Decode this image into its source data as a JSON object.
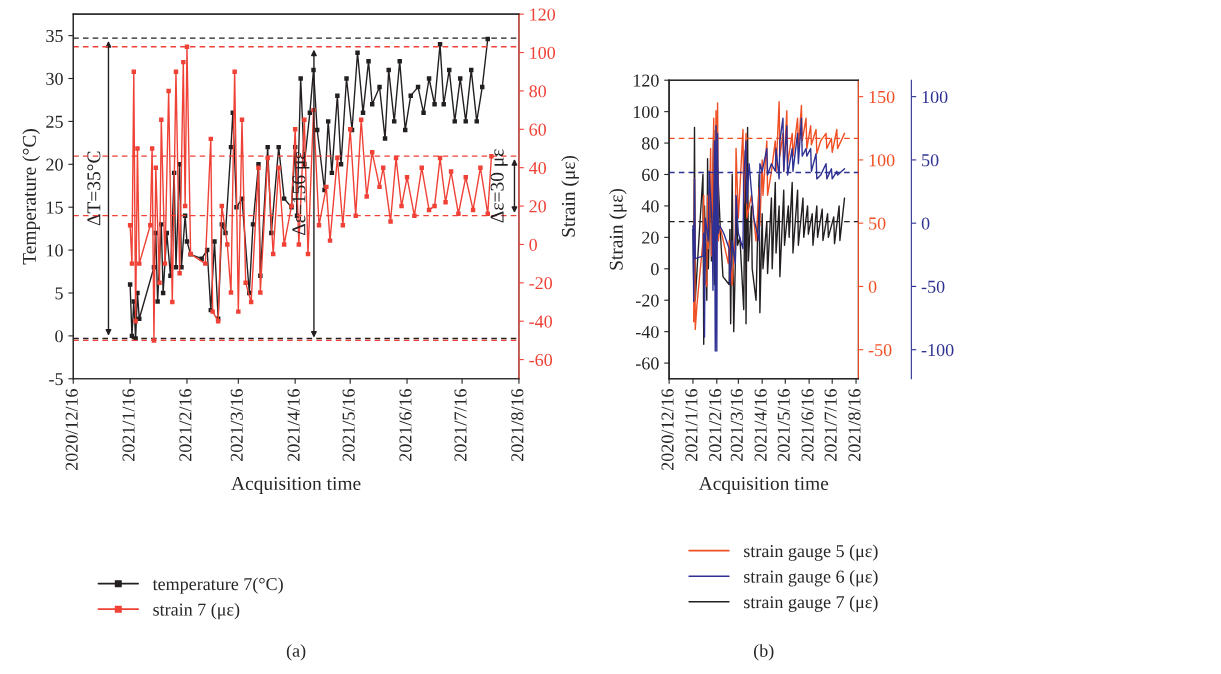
{
  "chart_data": [
    {
      "type": "line",
      "xlabel": "Acquisition time",
      "ylabel": "Temperature (°C)",
      "y2label": "Strain (με)",
      "marker": "square",
      "legend": "bottom",
      "grid": false,
      "xlim": [
        "2020-12-16",
        "2021-08-16"
      ],
      "xticks": [
        {
          "value": "2020-12-16",
          "label": "2020/12/16"
        },
        {
          "value": "2021-01-16",
          "label": "2021/1/16"
        },
        {
          "value": "2021-02-16",
          "label": "2021/2/16"
        },
        {
          "value": "2021-03-16",
          "label": "2021/3/16"
        },
        {
          "value": "2021-04-16",
          "label": "2021/4/16"
        },
        {
          "value": "2021-05-16",
          "label": "2021/5/16"
        },
        {
          "value": "2021-06-16",
          "label": "2021/6/16"
        },
        {
          "value": "2021-07-16",
          "label": "2021/7/16"
        },
        {
          "value": "2021-08-16",
          "label": "2021/8/16"
        }
      ],
      "ylim": [
        -5,
        37.5
      ],
      "yticks": [
        -5,
        0,
        5,
        10,
        15,
        20,
        25,
        30,
        35
      ],
      "y2lim": [
        -70,
        120
      ],
      "y2ticks": [
        -60,
        -40,
        -20,
        0,
        20,
        40,
        60,
        80,
        100,
        120
      ],
      "series": [
        {
          "name": "temperature 7(°C)",
          "color": "#231f20",
          "x": [
            "2021-01-16",
            "2021-01-17",
            "2021-01-18",
            "2021-01-19",
            "2021-01-20",
            "2021-01-21",
            "2021-01-29",
            "2021-01-30",
            "2021-01-31",
            "2021-02-02",
            "2021-02-03",
            "2021-02-05",
            "2021-02-07",
            "2021-02-09",
            "2021-02-10",
            "2021-02-12",
            "2021-02-13",
            "2021-02-15",
            "2021-02-16",
            "2021-02-18",
            "2021-02-24",
            "2021-02-27",
            "2021-03-01",
            "2021-03-03",
            "2021-03-05",
            "2021-03-07",
            "2021-03-09",
            "2021-03-12",
            "2021-03-13",
            "2021-03-15",
            "2021-03-18",
            "2021-03-22",
            "2021-03-24",
            "2021-03-27",
            "2021-03-28",
            "2021-04-01",
            "2021-04-03",
            "2021-04-07",
            "2021-04-10",
            "2021-04-14",
            "2021-04-16",
            "2021-04-17",
            "2021-04-19",
            "2021-04-21",
            "2021-04-24",
            "2021-04-26",
            "2021-04-28",
            "2021-05-02",
            "2021-05-04",
            "2021-05-06",
            "2021-05-09",
            "2021-05-11",
            "2021-05-14",
            "2021-05-17",
            "2021-05-20",
            "2021-05-23",
            "2021-05-26",
            "2021-05-28",
            "2021-06-01",
            "2021-06-04",
            "2021-06-06",
            "2021-06-09",
            "2021-06-12",
            "2021-06-15",
            "2021-06-18",
            "2021-06-22",
            "2021-06-25",
            "2021-06-28",
            "2021-07-01",
            "2021-07-04",
            "2021-07-06",
            "2021-07-09",
            "2021-07-12",
            "2021-07-15",
            "2021-07-18",
            "2021-07-21",
            "2021-07-24",
            "2021-07-27",
            "2021-07-30"
          ],
          "values": [
            6,
            0,
            4,
            -0.3,
            5,
            2,
            8,
            12,
            4,
            13,
            5,
            12,
            7,
            19,
            8,
            20,
            8,
            14,
            11,
            9.5,
            9,
            10,
            3,
            11,
            2,
            13,
            12,
            22,
            26,
            15,
            16,
            5,
            13,
            20,
            7,
            22,
            12,
            22,
            16,
            15,
            22,
            14,
            30,
            20,
            26,
            31,
            24,
            17,
            25,
            19,
            28,
            20,
            30,
            24,
            33,
            26,
            32,
            27,
            29,
            23,
            31,
            25,
            32,
            24,
            28,
            29,
            26,
            30,
            27,
            34,
            27,
            31,
            25,
            30,
            25,
            31,
            25,
            29,
            34.6
          ]
        },
        {
          "name": "strain 7 (με)",
          "color": "#ef4136",
          "axis": "y2",
          "x": [
            "2021-01-16",
            "2021-01-17",
            "2021-01-18",
            "2021-01-19",
            "2021-01-20",
            "2021-01-21",
            "2021-01-27",
            "2021-01-28",
            "2021-01-29",
            "2021-01-30",
            "2021-02-01",
            "2021-02-02",
            "2021-02-04",
            "2021-02-06",
            "2021-02-08",
            "2021-02-10",
            "2021-02-12",
            "2021-02-14",
            "2021-02-15",
            "2021-02-16",
            "2021-02-18",
            "2021-02-26",
            "2021-03-01",
            "2021-03-02",
            "2021-03-05",
            "2021-03-07",
            "2021-03-10",
            "2021-03-12",
            "2021-03-14",
            "2021-03-16",
            "2021-03-18",
            "2021-03-20",
            "2021-03-23",
            "2021-03-27",
            "2021-03-28",
            "2021-04-01",
            "2021-04-04",
            "2021-04-07",
            "2021-04-10",
            "2021-04-14",
            "2021-04-16",
            "2021-04-18",
            "2021-04-21",
            "2021-04-23",
            "2021-04-26",
            "2021-04-29",
            "2021-05-03",
            "2021-05-05",
            "2021-05-09",
            "2021-05-12",
            "2021-05-16",
            "2021-05-19",
            "2021-05-22",
            "2021-05-25",
            "2021-05-28",
            "2021-06-01",
            "2021-06-03",
            "2021-06-07",
            "2021-06-10",
            "2021-06-13",
            "2021-06-16",
            "2021-06-20",
            "2021-06-24",
            "2021-06-28",
            "2021-07-01",
            "2021-07-04",
            "2021-07-07",
            "2021-07-10",
            "2021-07-14",
            "2021-07-18",
            "2021-07-22",
            "2021-07-26",
            "2021-07-30",
            "2021-08-01"
          ],
          "values": [
            10,
            -10,
            90,
            -40,
            50,
            -10,
            10,
            50,
            -50,
            40,
            -20,
            65,
            -10,
            80,
            -30,
            90,
            -15,
            95,
            20,
            103,
            -5,
            -10,
            55,
            -35,
            -40,
            20,
            0,
            -25,
            90,
            -35,
            65,
            -20,
            -30,
            40,
            -25,
            45,
            -5,
            40,
            0,
            20,
            60,
            0,
            65,
            -5,
            70,
            10,
            30,
            2,
            45,
            10,
            60,
            15,
            65,
            25,
            48,
            30,
            40,
            12,
            45,
            20,
            35,
            15,
            40,
            18,
            20,
            45,
            22,
            38,
            16,
            35,
            18,
            40,
            16,
            46
          ]
        }
      ],
      "ref_lines": [
        {
          "axis": "y",
          "value": 34.7,
          "color": "#231f20",
          "line_style": "dashed"
        },
        {
          "axis": "y",
          "value": -0.3,
          "color": "#231f20",
          "line_style": "dashed"
        },
        {
          "axis": "y2",
          "value": 103,
          "color": "#ef4136",
          "line_style": "dashed"
        },
        {
          "axis": "y2",
          "value": -50,
          "color": "#ef4136",
          "line_style": "dashed"
        },
        {
          "axis": "y2",
          "value": 46,
          "color": "#ef4136",
          "line_style": "dashed"
        },
        {
          "axis": "y2",
          "value": 15,
          "color": "#ef4136",
          "line_style": "dashed"
        }
      ],
      "annotations": [
        "ΔT=35°C",
        "Δε=156 με",
        "Δε=30 με",
        "(a)"
      ]
    },
    {
      "type": "line",
      "xlabel": "Acquisition time",
      "ylabel": "Strain (με)",
      "legend": "bottom",
      "grid": false,
      "xlim": [
        "2020-12-16",
        "2021-08-19"
      ],
      "xticks": [
        {
          "value": "2020-12-16",
          "label": "2020/12/16"
        },
        {
          "value": "2021-01-16",
          "label": "2021/1/16"
        },
        {
          "value": "2021-02-16",
          "label": "2021/2/16"
        },
        {
          "value": "2021-03-16",
          "label": "2021/3/16"
        },
        {
          "value": "2021-04-16",
          "label": "2021/4/16"
        },
        {
          "value": "2021-05-16",
          "label": "2021/5/16"
        },
        {
          "value": "2021-06-16",
          "label": "2021/6/16"
        },
        {
          "value": "2021-07-16",
          "label": "2021/7/16"
        },
        {
          "value": "2021-08-16",
          "label": "2021/8/16"
        }
      ],
      "ylim": [
        -70,
        120
      ],
      "yticks": [
        -60,
        -40,
        -20,
        0,
        20,
        40,
        60,
        80,
        100,
        120
      ],
      "y2lim": [
        -73,
        163
      ],
      "y2ticks": [
        -50,
        0,
        50,
        100,
        150
      ],
      "y3lim": [
        -123,
        113
      ],
      "y3ticks": [
        -100,
        -50,
        0,
        50,
        100
      ],
      "series": [
        {
          "name": "strain gauge 5 (με)",
          "color": "#f04e23",
          "axis": "y2",
          "x": [
            "2021-01-17",
            "2021-01-18",
            "2021-01-19",
            "2021-01-21",
            "2021-01-29",
            "2021-01-30",
            "2021-01-31",
            "2021-02-03",
            "2021-02-04",
            "2021-02-05",
            "2021-02-08",
            "2021-02-09",
            "2021-02-12",
            "2021-02-13",
            "2021-02-15",
            "2021-02-16",
            "2021-02-17",
            "2021-02-18",
            "2021-02-20",
            "2021-03-03",
            "2021-03-04",
            "2021-03-08",
            "2021-03-12",
            "2021-03-13",
            "2021-03-16",
            "2021-03-22",
            "2021-03-23",
            "2021-03-26",
            "2021-03-27",
            "2021-04-02",
            "2021-04-08",
            "2021-04-12",
            "2021-04-13",
            "2021-04-16",
            "2021-04-17",
            "2021-04-22",
            "2021-04-23",
            "2021-04-28",
            "2021-05-03",
            "2021-05-04",
            "2021-05-08",
            "2021-05-09",
            "2021-05-13",
            "2021-05-14",
            "2021-05-18",
            "2021-05-19",
            "2021-05-25",
            "2021-05-26",
            "2021-06-01",
            "2021-06-02",
            "2021-06-06",
            "2021-06-07",
            "2021-06-12",
            "2021-06-13",
            "2021-06-18",
            "2021-06-19",
            "2021-06-25",
            "2021-06-26",
            "2021-07-01",
            "2021-07-08",
            "2021-07-09",
            "2021-07-15",
            "2021-07-16",
            "2021-07-22",
            "2021-07-23",
            "2021-08-01"
          ],
          "values": [
            -28,
            85,
            -34,
            -16,
            36,
            72,
            6,
            0,
            72,
            30,
            109,
            24,
            133,
            30,
            139,
            42,
            145,
            36,
            48,
            18,
            36,
            1,
            42,
            109,
            54,
            124,
            66,
            121,
            54,
            72,
            36,
            78,
            48,
            100,
            72,
            115,
            72,
            91,
            115,
            91,
            146,
            103,
            121,
            91,
            139,
            97,
            121,
            103,
            133,
            109,
            143,
            115,
            133,
            109,
            127,
            112,
            124,
            105,
            115,
            121,
            109,
            117,
            106,
            124,
            109,
            121
          ]
        },
        {
          "name": "strain gauge 6 (με)",
          "color": "#2e3192",
          "axis": "y3",
          "x": [
            "2021-01-16",
            "2021-01-17",
            "2021-01-18",
            "2021-01-19",
            "2021-01-29",
            "2021-01-30",
            "2021-01-31",
            "2021-02-01",
            "2021-02-05",
            "2021-02-06",
            "2021-02-10",
            "2021-02-11",
            "2021-02-13",
            "2021-02-14",
            "2021-02-15",
            "2021-02-16",
            "2021-02-17",
            "2021-02-18",
            "2021-02-20",
            "2021-02-25",
            "2021-03-04",
            "2021-03-05",
            "2021-03-08",
            "2021-03-12",
            "2021-03-13",
            "2021-03-16",
            "2021-03-22",
            "2021-03-23",
            "2021-03-26",
            "2021-03-27",
            "2021-03-30",
            "2021-04-05",
            "2021-04-12",
            "2021-04-13",
            "2021-04-16",
            "2021-04-22",
            "2021-04-23",
            "2021-04-28",
            "2021-05-03",
            "2021-05-04",
            "2021-05-08",
            "2021-05-09",
            "2021-05-13",
            "2021-05-14",
            "2021-05-18",
            "2021-05-19",
            "2021-05-25",
            "2021-05-26",
            "2021-06-01",
            "2021-06-02",
            "2021-06-06",
            "2021-06-07",
            "2021-06-12",
            "2021-06-13",
            "2021-06-18",
            "2021-06-19",
            "2021-06-25",
            "2021-06-26",
            "2021-07-01",
            "2021-07-08",
            "2021-07-09",
            "2021-07-15",
            "2021-07-16",
            "2021-07-22",
            "2021-07-23",
            "2021-08-01"
          ],
          "values": [
            -2,
            -62,
            35,
            -28,
            -26,
            -8,
            -90,
            4,
            -14,
            41,
            -2,
            -53,
            65,
            -101,
            77,
            -101,
            71,
            -8,
            -2,
            -8,
            -20,
            -48,
            -14,
            -32,
            22,
            -8,
            -20,
            35,
            65,
            16,
            47,
            4,
            -14,
            47,
            41,
            59,
            38,
            47,
            41,
            59,
            35,
            65,
            83,
            41,
            77,
            38,
            59,
            41,
            71,
            47,
            83,
            53,
            59,
            53,
            59,
            41,
            55,
            35,
            38,
            47,
            35,
            43,
            35,
            41,
            38,
            43
          ]
        },
        {
          "name": "strain gauge 7 (με)",
          "color": "#231f20",
          "x": [
            "2021-01-16",
            "2021-01-17",
            "2021-01-18",
            "2021-01-19",
            "2021-01-22",
            "2021-01-29",
            "2021-01-30",
            "2021-01-31",
            "2021-02-03",
            "2021-02-04",
            "2021-02-05",
            "2021-02-08",
            "2021-02-09",
            "2021-02-12",
            "2021-02-13",
            "2021-02-15",
            "2021-02-16",
            "2021-02-17",
            "2021-02-21",
            "2021-02-24",
            "2021-03-04",
            "2021-03-05",
            "2021-03-06",
            "2021-03-08",
            "2021-03-10",
            "2021-03-14",
            "2021-03-15",
            "2021-03-18",
            "2021-03-23",
            "2021-03-25",
            "2021-03-26",
            "2021-03-28",
            "2021-03-29",
            "2021-04-02",
            "2021-04-03",
            "2021-04-08",
            "2021-04-12",
            "2021-04-13",
            "2021-04-16",
            "2021-04-17",
            "2021-04-22",
            "2021-04-23",
            "2021-04-28",
            "2021-04-29",
            "2021-05-03",
            "2021-05-04",
            "2021-05-08",
            "2021-05-09",
            "2021-05-14",
            "2021-05-15",
            "2021-05-20",
            "2021-05-21",
            "2021-05-25",
            "2021-05-26",
            "2021-06-01",
            "2021-06-02",
            "2021-06-08",
            "2021-06-09",
            "2021-06-14",
            "2021-06-15",
            "2021-06-20",
            "2021-06-21",
            "2021-06-26",
            "2021-06-27",
            "2021-07-03",
            "2021-07-04",
            "2021-07-10",
            "2021-07-11",
            "2021-07-18",
            "2021-07-19",
            "2021-07-25",
            "2021-07-26",
            "2021-08-01"
          ],
          "values": [
            25,
            -10,
            90,
            -20,
            5,
            60,
            -48,
            40,
            -20,
            70,
            0,
            60,
            5,
            88,
            -10,
            90,
            20,
            65,
            20,
            -5,
            -10,
            25,
            -35,
            60,
            -40,
            45,
            15,
            20,
            -26,
            75,
            -35,
            90,
            5,
            40,
            0,
            -20,
            60,
            -28,
            35,
            0,
            30,
            -3,
            45,
            0,
            55,
            10,
            40,
            -5,
            50,
            15,
            40,
            20,
            55,
            10,
            50,
            15,
            45,
            20,
            40,
            22,
            35,
            15,
            40,
            20,
            38,
            18,
            35,
            20,
            33,
            16,
            40,
            18,
            45
          ]
        }
      ],
      "ref_lines": [
        {
          "axis": "y",
          "value": 30,
          "color": "#231f20",
          "line_style": "dashed"
        },
        {
          "axis": "y2",
          "value": 117,
          "color": "#f04e23",
          "line_style": "dashed"
        },
        {
          "axis": "y3",
          "value": 40,
          "color": "#2e3192",
          "line_style": "dashed"
        }
      ],
      "annotations": [
        "(b)"
      ]
    }
  ]
}
